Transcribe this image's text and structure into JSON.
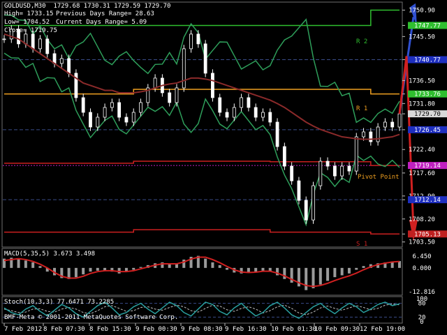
{
  "header": {
    "symbol_line": "GOLDUSD,M30  1729.68 1730.31 1729.59 1729.70",
    "high": "High= 1733.15",
    "low": "Low= 1704.52",
    "close": "Close= 1719.75",
    "prev_range": "Previous Days Range= 28.63",
    "curr_range": "Current Days Range= 5.09"
  },
  "levels": {
    "r2": "R 2",
    "r1": "R 1",
    "pivot": "Pivot Point",
    "s1": "S 1"
  },
  "footer": {
    "copyright": "BMF-Meta © 2001-2011 MetaQuotes Software Corp."
  },
  "colors": {
    "background": "#000000",
    "grid": "#2a3c5a",
    "bollinger": "#2e9e5a",
    "ma": "#8b2a2a",
    "r2_line": "#2fbf2f",
    "r1_line": "#f0a020",
    "pivot_line": "#cc2020",
    "s1_line": "#cc2020",
    "candle": "#ffffff",
    "macd_signal": "#d02020",
    "macd_hist": "#9a9a9a",
    "stoch_main": "#2aa0a0",
    "stoch_signal": "#c0c0c0",
    "arrow_up": "#3050d0",
    "arrow_down": "#d02020"
  },
  "chart_data": [
    {
      "type": "line",
      "panel": "price",
      "y_ticks": [
        "1750.90",
        "1747.77",
        "1745.50",
        "1740.77",
        "1736.50",
        "1733.76",
        "1731.80",
        "1729.70",
        "1726.45",
        "1722.40",
        "1719.14",
        "1717.60",
        "1712.90",
        "1712.14",
        "1708.20",
        "1705.13",
        "1703.50"
      ],
      "highlighted_ticks": [
        {
          "value": "1747.77",
          "color": "#2fbf2f"
        },
        {
          "value": "1740.77",
          "color": "#1e2fc0"
        },
        {
          "value": "1733.76",
          "color": "#2fbf2f"
        },
        {
          "value": "1729.70",
          "color": "#d8d8d8"
        },
        {
          "value": "1726.45",
          "color": "#1e2fc0"
        },
        {
          "value": "1719.14",
          "color": "#c020c0"
        },
        {
          "value": "1712.14",
          "color": "#1e2fc0"
        },
        {
          "value": "1705.13",
          "color": "#c02020"
        }
      ],
      "ylim": [
        1702.6,
        1752.4
      ],
      "x_ticks": [
        "7 Feb 2012",
        "8 Feb 07:30",
        "8 Feb 15:30",
        "9 Feb 00:30",
        "9 Feb 08:30",
        "9 Feb 16:30",
        "10 Feb 01:30",
        "10 Feb 09:30",
        "12 Feb 19:00"
      ],
      "ohlc_last": {
        "open": 1729.68,
        "high": 1730.31,
        "low": 1729.59,
        "close": 1729.7
      },
      "series": [
        {
          "name": "",
          "values": [
            1745,
            1747,
            1744,
            1746,
            1743,
            1745,
            1742,
            1740,
            1741,
            1738,
            1733,
            1730,
            1727,
            1729,
            1731,
            1732,
            1729,
            1728,
            1730,
            1732,
            1735,
            1737,
            1734,
            1732,
            1735,
            1743,
            1746,
            1744,
            1738,
            1733,
            1730,
            1729,
            1731,
            1733,
            1731,
            1729,
            1730,
            1728,
            1723,
            1719,
            1716,
            1712,
            1708,
            1715,
            1720,
            1719,
            1717,
            1719,
            1718,
            1725,
            1726,
            1724,
            1727,
            1728,
            1727,
            1729.7
          ]
        },
        {
          "name": "",
          "values": [
            1746,
            1745.5,
            1745,
            1744,
            1743,
            1742,
            1741,
            1740,
            1739,
            1738,
            1737,
            1736,
            1735.5,
            1735,
            1734.5,
            1734.5,
            1734,
            1734,
            1734,
            1734.2,
            1734.5,
            1735,
            1735.5,
            1735.8,
            1736,
            1736.5,
            1737,
            1737,
            1736.8,
            1736.5,
            1736,
            1735.5,
            1735,
            1734.5,
            1734,
            1733.5,
            1733,
            1732.5,
            1731.8,
            1731,
            1730,
            1729,
            1728,
            1727.2,
            1726.5,
            1726,
            1725.5,
            1725,
            1724.8,
            1724.6,
            1724.5,
            1724.5,
            1724.6,
            1724.8,
            1725,
            1725.5
          ]
        }
      ]
    },
    {
      "type": "line",
      "panel": "macd",
      "title": "MACD(5,35,5) 3.673 3.498",
      "y_ticks": [
        "6.450",
        "0.000",
        "-12.816"
      ],
      "ylim": [
        -14,
        9
      ],
      "histogram": [
        5,
        5.5,
        5,
        4,
        3,
        1,
        -2,
        -4,
        -5.5,
        -6,
        -5,
        -3.5,
        -2,
        -1.5,
        -1.5,
        -2,
        -3,
        -2,
        -1,
        0.5,
        1.5,
        2.5,
        3,
        2,
        2.5,
        4.5,
        6,
        6.5,
        5,
        3,
        1.5,
        -1,
        -2.5,
        -3,
        -2.5,
        -2,
        -1.5,
        -2,
        -4,
        -6,
        -8,
        -10,
        -12,
        -11,
        -9,
        -7,
        -5,
        -4,
        -3,
        -1,
        1,
        2,
        2.5,
        3,
        3.5,
        3.7
      ],
      "signal": [
        4,
        4.5,
        5,
        4.5,
        3.5,
        2,
        0,
        -2.5,
        -4.5,
        -5.5,
        -5.5,
        -4.5,
        -3,
        -2,
        -1.5,
        -1.5,
        -2,
        -2,
        -1.5,
        -0.5,
        0.5,
        1.5,
        2.2,
        2.2,
        2.2,
        3.2,
        4.8,
        5.8,
        5.8,
        4.5,
        2.8,
        0.8,
        -1,
        -2.2,
        -2.5,
        -2.3,
        -1.8,
        -1.8,
        -2.8,
        -4.3,
        -6.2,
        -8,
        -9.5,
        -10,
        -9.5,
        -8.3,
        -6.8,
        -5.5,
        -4.3,
        -2.8,
        -1,
        0.6,
        1.8,
        2.6,
        3.2,
        3.5
      ]
    },
    {
      "type": "line",
      "panel": "stochastic",
      "title": "Stoch(10,3,3) 77.6471 73.2285",
      "y_ticks": [
        "100",
        "80",
        "20",
        "0"
      ],
      "ylim": [
        0,
        100
      ],
      "main": [
        60,
        40,
        30,
        55,
        70,
        45,
        25,
        50,
        75,
        60,
        35,
        20,
        45,
        70,
        85,
        60,
        30,
        40,
        65,
        80,
        55,
        35,
        60,
        85,
        70,
        40,
        25,
        55,
        85,
        75,
        45,
        30,
        60,
        80,
        50,
        25,
        40,
        70,
        85,
        60,
        30,
        15,
        40,
        65,
        80,
        55,
        35,
        60,
        80,
        65,
        40,
        55,
        75,
        85,
        70,
        77.6
      ],
      "signal": [
        55,
        48,
        40,
        42,
        55,
        56,
        45,
        42,
        55,
        62,
        55,
        40,
        35,
        48,
        65,
        70,
        58,
        45,
        48,
        62,
        65,
        55,
        50,
        62,
        72,
        65,
        48,
        42,
        58,
        72,
        68,
        52,
        45,
        58,
        65,
        55,
        38,
        48,
        65,
        72,
        58,
        38,
        30,
        42,
        60,
        68,
        58,
        50,
        60,
        70,
        62,
        52,
        58,
        72,
        77,
        73.2
      ]
    }
  ]
}
